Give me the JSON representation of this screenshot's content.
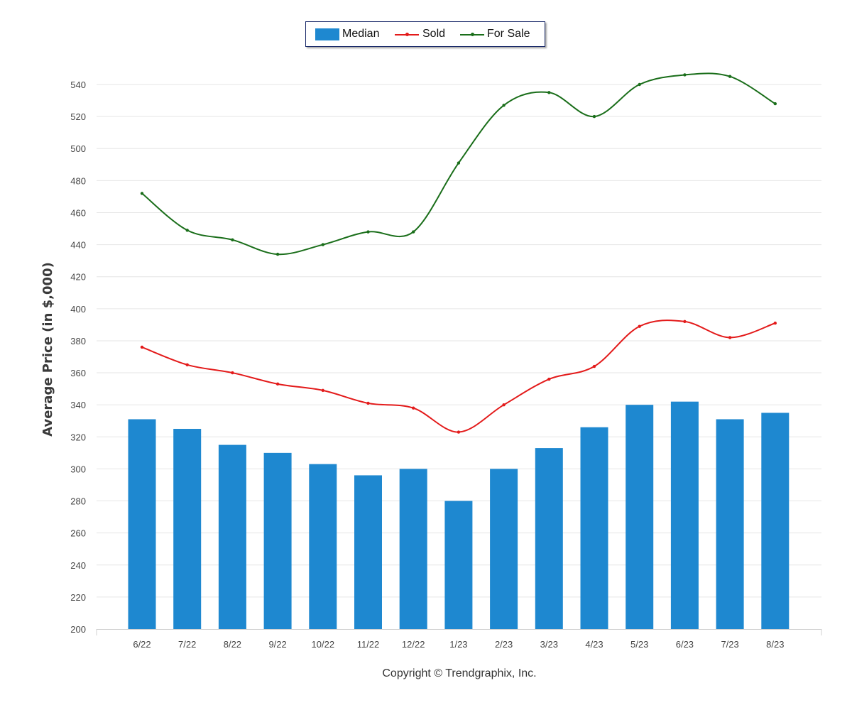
{
  "legend": {
    "median_label": "Median",
    "sold_label": "Sold",
    "forsale_label": "For Sale"
  },
  "footer": {
    "copyright": "Copyright © Trendgraphix, Inc."
  },
  "colors": {
    "median": "#1e88d0",
    "sold": "#e31a1a",
    "forsale": "#1a6e1a",
    "grid": "#e6e6e6"
  },
  "chart_data": {
    "type": "bar",
    "ylabel": "Average Price (in $,000)",
    "xlabel": "",
    "ylim": [
      200,
      540
    ],
    "yticks": [
      200,
      220,
      240,
      260,
      280,
      300,
      320,
      340,
      360,
      380,
      400,
      420,
      440,
      460,
      480,
      500,
      520,
      540
    ],
    "grid": true,
    "legend_position": "top-center",
    "categories": [
      "6/22",
      "7/22",
      "8/22",
      "9/22",
      "10/22",
      "11/22",
      "12/22",
      "1/23",
      "2/23",
      "3/23",
      "4/23",
      "5/23",
      "6/23",
      "7/23",
      "8/23"
    ],
    "series": [
      {
        "name": "Median",
        "type": "bar",
        "values": [
          331,
          325,
          315,
          310,
          303,
          296,
          300,
          280,
          300,
          313,
          326,
          340,
          342,
          331,
          335
        ]
      },
      {
        "name": "Sold",
        "type": "line",
        "values": [
          376,
          365,
          360,
          353,
          349,
          341,
          338,
          323,
          340,
          356,
          364,
          389,
          392,
          382,
          391
        ]
      },
      {
        "name": "For Sale",
        "type": "line",
        "values": [
          472,
          449,
          443,
          434,
          440,
          448,
          448,
          491,
          527,
          535,
          520,
          540,
          546,
          545,
          528
        ]
      }
    ]
  }
}
